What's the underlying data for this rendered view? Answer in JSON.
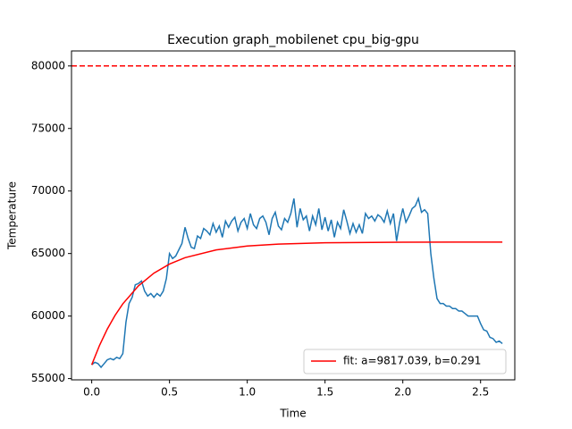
{
  "chart_data": {
    "type": "line",
    "title": "Execution graph_mobilenet cpu_big-gpu",
    "xlabel": "Time",
    "ylabel": "Temperature",
    "xlim": [
      -0.13,
      2.72
    ],
    "ylim": [
      54900,
      81200
    ],
    "xticks": [
      {
        "value": 0,
        "label": "0.0"
      },
      0.5,
      {
        "value": 1,
        "label": "1.0"
      },
      1.5,
      {
        "value": 2,
        "label": "2.0"
      },
      2.5
    ],
    "yticks": [
      55000,
      60000,
      65000,
      70000,
      75000,
      80000
    ],
    "legend": "lower right",
    "hlines": [
      {
        "value": 80000,
        "color": "#ff0000",
        "style": "dashed"
      }
    ],
    "series": [
      {
        "color": "#1f77b4",
        "x": [
          0,
          0.02,
          0.04,
          0.06,
          0.08,
          0.1,
          0.12,
          0.14,
          0.16,
          0.18,
          0.2,
          0.22,
          0.24,
          0.26,
          0.28,
          0.3,
          0.32,
          0.34,
          0.36,
          0.38,
          0.4,
          0.42,
          0.44,
          0.46,
          0.48,
          0.5,
          0.52,
          0.54,
          0.56,
          0.58,
          0.6,
          0.62,
          0.64,
          0.66,
          0.68,
          0.7,
          0.72,
          0.74,
          0.76,
          0.78,
          0.8,
          0.82,
          0.84,
          0.86,
          0.88,
          0.9,
          0.92,
          0.94,
          0.96,
          0.98,
          1,
          1.02,
          1.04,
          1.06,
          1.08,
          1.1,
          1.12,
          1.14,
          1.16,
          1.18,
          1.2,
          1.22,
          1.24,
          1.26,
          1.28,
          1.3,
          1.32,
          1.34,
          1.36,
          1.38,
          1.4,
          1.42,
          1.44,
          1.46,
          1.48,
          1.5,
          1.52,
          1.54,
          1.56,
          1.58,
          1.6,
          1.62,
          1.64,
          1.66,
          1.68,
          1.7,
          1.72,
          1.74,
          1.76,
          1.78,
          1.8,
          1.82,
          1.84,
          1.86,
          1.88,
          1.9,
          1.92,
          1.94,
          1.96,
          1.98,
          2,
          2.02,
          2.04,
          2.06,
          2.08,
          2.1,
          2.12,
          2.14,
          2.16,
          2.18,
          2.2,
          2.22,
          2.24,
          2.26,
          2.28,
          2.3,
          2.32,
          2.34,
          2.36,
          2.38,
          2.4,
          2.42,
          2.44,
          2.46,
          2.48,
          2.5,
          2.52,
          2.54,
          2.56,
          2.58,
          2.6,
          2.62,
          2.64
        ],
        "values": [
          56100,
          56300,
          56200,
          55900,
          56200,
          56500,
          56600,
          56500,
          56700,
          56600,
          57000,
          59500,
          61000,
          61500,
          62500,
          62600,
          62800,
          62000,
          61600,
          61800,
          61500,
          61800,
          61600,
          62000,
          63000,
          65000,
          64600,
          64800,
          65300,
          65800,
          67100,
          66200,
          65500,
          65400,
          66400,
          66200,
          67000,
          66800,
          66500,
          67400,
          66700,
          67200,
          66300,
          67600,
          67100,
          67600,
          67900,
          66800,
          67500,
          67800,
          67000,
          68200,
          67300,
          67000,
          67800,
          68000,
          67500,
          66500,
          67800,
          68300,
          67200,
          66900,
          67800,
          67500,
          68200,
          69400,
          67100,
          68600,
          67700,
          68000,
          66800,
          68000,
          67300,
          68600,
          66900,
          67900,
          66800,
          67700,
          66300,
          67500,
          67000,
          68500,
          67600,
          66600,
          67400,
          66700,
          67300,
          66600,
          68200,
          67800,
          68000,
          67600,
          68100,
          67900,
          67500,
          68400,
          67400,
          68200,
          66000,
          67500,
          68600,
          67500,
          68000,
          68600,
          68800,
          69400,
          68300,
          68500,
          68200,
          65000,
          63000,
          61400,
          61000,
          61000,
          60800,
          60800,
          60600,
          60600,
          60400,
          60400,
          60200,
          60000,
          60000,
          60000,
          60000,
          59400,
          58900,
          58800,
          58300,
          58200,
          57900,
          58000,
          57800
        ]
      },
      {
        "name": "fit: a=9817.039, b=0.291",
        "color": "#ff0000",
        "x": [
          0,
          0.05,
          0.1,
          0.15,
          0.2,
          0.3,
          0.4,
          0.5,
          0.6,
          0.8,
          1,
          1.2,
          1.5,
          2,
          2.64
        ],
        "values": [
          56100,
          57651,
          58957,
          60056,
          60979,
          62412,
          63433,
          64160,
          64670,
          65289,
          65603,
          65756,
          65860,
          65907,
          65917
        ]
      }
    ]
  }
}
